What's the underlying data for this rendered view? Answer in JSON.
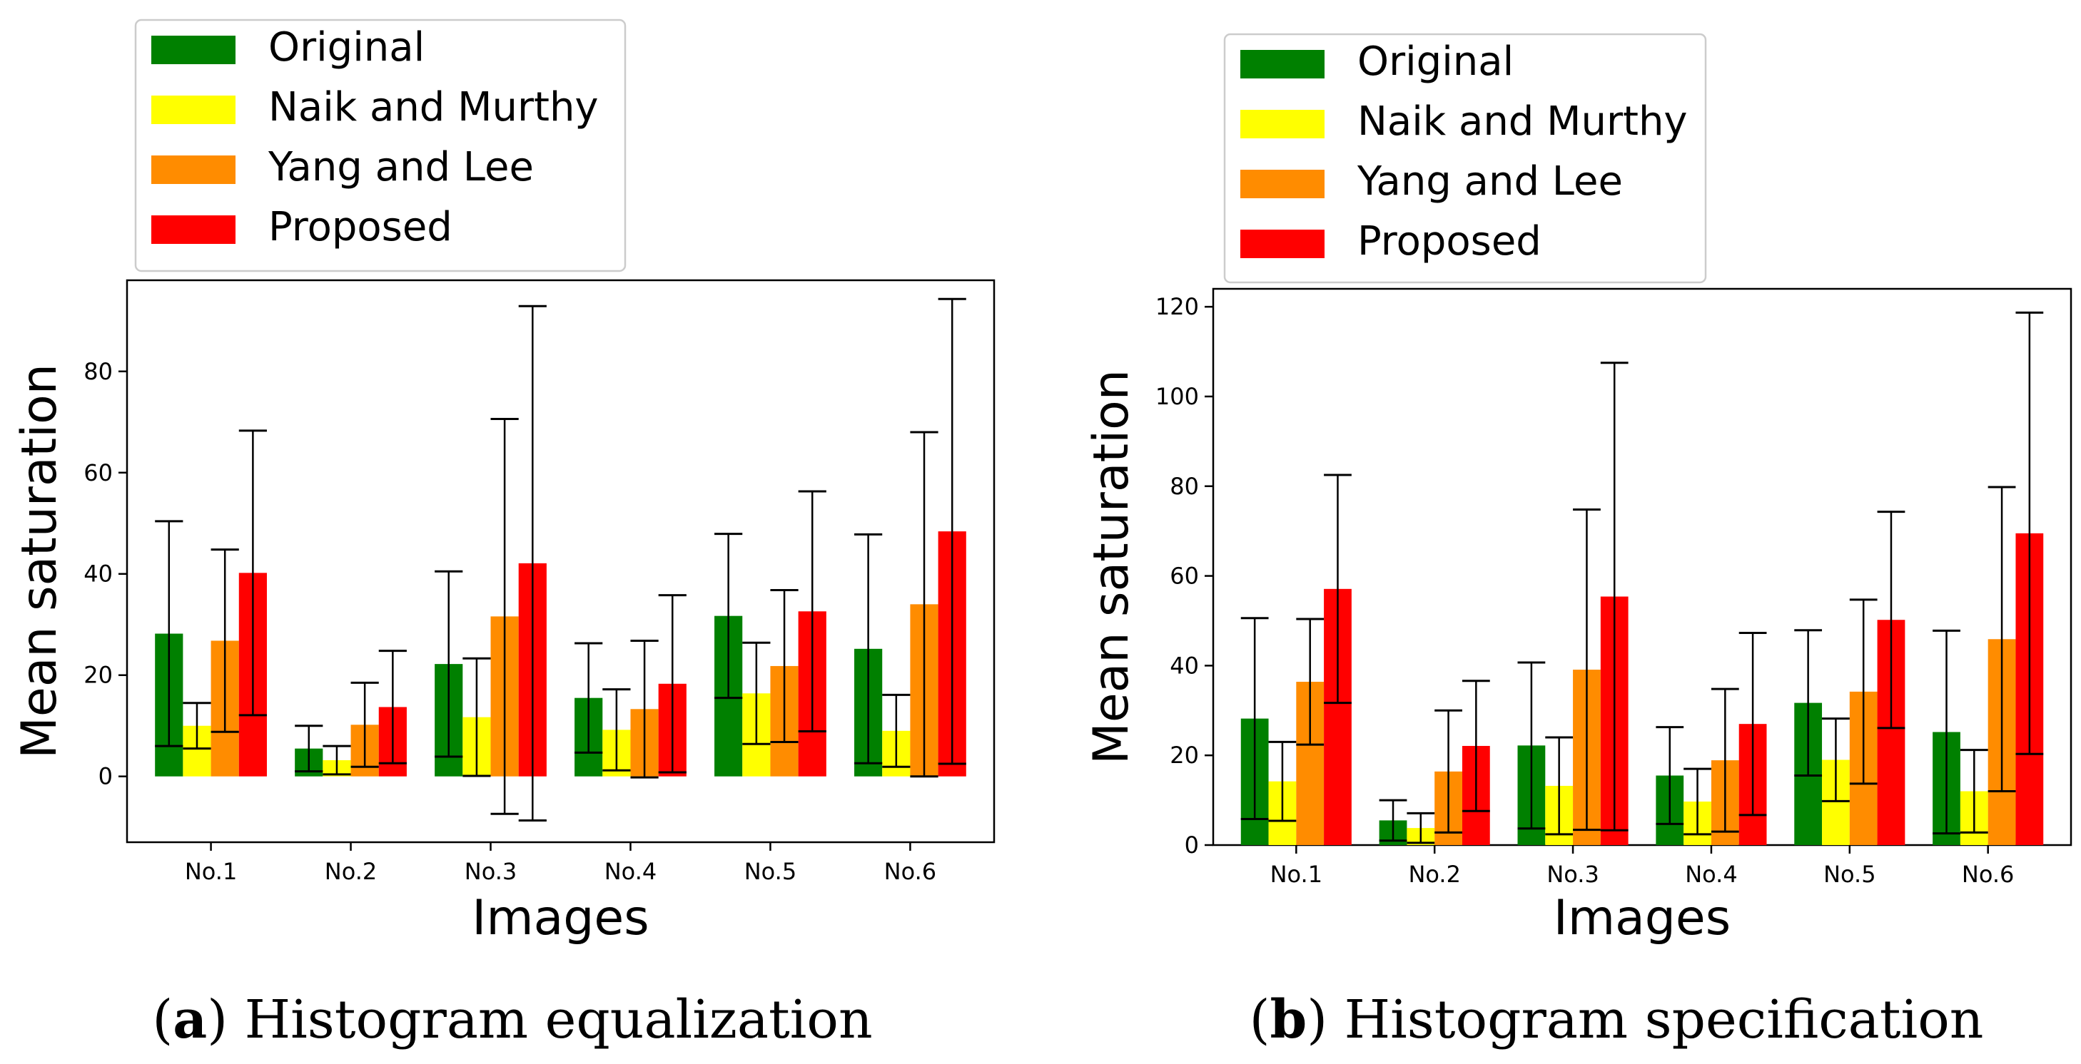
{
  "figure": {
    "captions": [
      {
        "tag": "a",
        "text": "Histogram equalization"
      },
      {
        "tag": "b",
        "text": "Histogram specification"
      }
    ]
  },
  "colors": {
    "Original": "#008000",
    "Naik and Murthy": "#ffff00",
    "Yang and Lee": "#ff8c00",
    "Proposed": "#ff0000"
  },
  "chart_data": [
    {
      "type": "bar",
      "title": "",
      "xlabel": "Images",
      "ylabel": "Mean saturation",
      "categories": [
        "No.1",
        "No.2",
        "No.3",
        "No.4",
        "No.5",
        "No.6"
      ],
      "ylim": [
        -13,
        98
      ],
      "yticks": [
        0,
        20,
        40,
        60,
        80
      ],
      "legend": "above-left",
      "error_bars": true,
      "series": [
        {
          "name": "Original",
          "values": [
            28.2,
            5.5,
            22.2,
            15.5,
            31.7,
            25.2
          ],
          "err": [
            22.2,
            4.5,
            18.3,
            10.8,
            16.2,
            22.6
          ]
        },
        {
          "name": "Naik and Murthy",
          "values": [
            10.0,
            3.2,
            11.7,
            9.2,
            16.4,
            9.0
          ],
          "err": [
            4.5,
            2.8,
            11.6,
            8.0,
            10.0,
            7.1
          ]
        },
        {
          "name": "Yang and Lee",
          "values": [
            26.8,
            10.2,
            31.6,
            13.3,
            21.8,
            34.0
          ],
          "err": [
            18.0,
            8.3,
            39.0,
            13.5,
            15.0,
            34.0
          ]
        },
        {
          "name": "Proposed",
          "values": [
            40.2,
            13.7,
            42.1,
            18.3,
            32.6,
            48.4
          ],
          "err": [
            28.1,
            11.1,
            50.8,
            17.5,
            23.7,
            45.9
          ]
        }
      ]
    },
    {
      "type": "bar",
      "title": "",
      "xlabel": "Images",
      "ylabel": "Mean saturation",
      "categories": [
        "No.1",
        "No.2",
        "No.3",
        "No.4",
        "No.5",
        "No.6"
      ],
      "ylim": [
        0,
        124
      ],
      "yticks": [
        0,
        20,
        40,
        60,
        80,
        100,
        120
      ],
      "legend": "above-left",
      "error_bars": true,
      "series": [
        {
          "name": "Original",
          "values": [
            28.2,
            5.5,
            22.2,
            15.5,
            31.7,
            25.2
          ],
          "err": [
            22.4,
            4.5,
            18.5,
            10.8,
            16.2,
            22.6
          ]
        },
        {
          "name": "Naik and Murthy",
          "values": [
            14.2,
            3.8,
            13.2,
            9.7,
            19.0,
            12.0
          ],
          "err": [
            8.8,
            3.3,
            10.8,
            7.3,
            9.2,
            9.2
          ]
        },
        {
          "name": "Yang and Lee",
          "values": [
            36.4,
            16.4,
            39.1,
            18.9,
            34.2,
            45.9
          ],
          "err": [
            14.0,
            13.6,
            35.7,
            15.9,
            20.5,
            33.9
          ]
        },
        {
          "name": "Proposed",
          "values": [
            57.1,
            22.1,
            55.4,
            27.0,
            50.2,
            69.5
          ],
          "err": [
            25.4,
            14.5,
            52.1,
            20.3,
            24.1,
            49.2
          ]
        }
      ]
    }
  ]
}
